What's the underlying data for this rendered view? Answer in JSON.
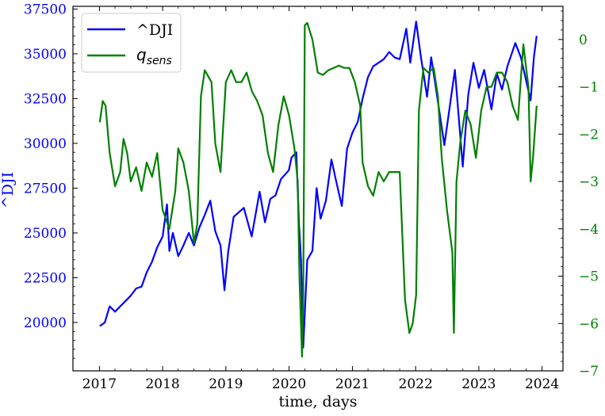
{
  "chart_data": {
    "type": "line",
    "xlabel": "time, days",
    "ylabel_left": "^DJI",
    "left_color": "#0000ff",
    "right_color": "#008000",
    "x_ticks": [
      "2017",
      "2018",
      "2019",
      "2020",
      "2021",
      "2022",
      "2023",
      "2024"
    ],
    "y_left_ticks": [
      "20000",
      "22500",
      "25000",
      "27500",
      "30000",
      "32500",
      "35000",
      "37500"
    ],
    "y_right_ticks": [
      "0",
      "−1",
      "−2",
      "−3",
      "−4",
      "−5",
      "−6",
      "−7"
    ],
    "xlim": [
      "2016-08-01",
      "2024-05-01"
    ],
    "ylim_left": [
      17300,
      37650
    ],
    "ylim_right": [
      -7.0,
      0.7
    ],
    "legend": {
      "placement": "top-left",
      "entries": [
        {
          "label": "^DJI",
          "color": "#0000ff"
        },
        {
          "label_main": "q",
          "label_sub": "sens",
          "color": "#008000"
        }
      ]
    },
    "series": [
      {
        "name": "^DJI",
        "axis": "left",
        "color": "#0000ff",
        "points": [
          [
            "2017-01-03",
            19800
          ],
          [
            "2017-02-01",
            20000
          ],
          [
            "2017-03-01",
            20900
          ],
          [
            "2017-04-01",
            20600
          ],
          [
            "2017-05-01",
            20900
          ],
          [
            "2017-06-01",
            21200
          ],
          [
            "2017-07-01",
            21500
          ],
          [
            "2017-08-01",
            21900
          ],
          [
            "2017-09-01",
            22000
          ],
          [
            "2017-10-01",
            22800
          ],
          [
            "2017-11-01",
            23400
          ],
          [
            "2017-12-01",
            24200
          ],
          [
            "2018-01-01",
            24800
          ],
          [
            "2018-01-26",
            26600
          ],
          [
            "2018-02-09",
            24000
          ],
          [
            "2018-03-01",
            25000
          ],
          [
            "2018-04-01",
            23700
          ],
          [
            "2018-05-01",
            24300
          ],
          [
            "2018-06-01",
            25000
          ],
          [
            "2018-07-01",
            24300
          ],
          [
            "2018-08-01",
            25300
          ],
          [
            "2018-09-01",
            26000
          ],
          [
            "2018-10-03",
            26800
          ],
          [
            "2018-11-01",
            25100
          ],
          [
            "2018-12-01",
            24300
          ],
          [
            "2018-12-24",
            21800
          ],
          [
            "2019-01-15",
            24000
          ],
          [
            "2019-02-15",
            25900
          ],
          [
            "2019-04-15",
            26400
          ],
          [
            "2019-05-30",
            24800
          ],
          [
            "2019-07-15",
            27300
          ],
          [
            "2019-08-15",
            25600
          ],
          [
            "2019-09-15",
            26900
          ],
          [
            "2019-10-15",
            27100
          ],
          [
            "2019-11-15",
            28000
          ],
          [
            "2019-12-31",
            28500
          ],
          [
            "2020-01-15",
            29200
          ],
          [
            "2020-02-12",
            29500
          ],
          [
            "2020-02-28",
            25400
          ],
          [
            "2020-03-10",
            23500
          ],
          [
            "2020-03-23",
            18600
          ],
          [
            "2020-04-15",
            23500
          ],
          [
            "2020-05-15",
            24000
          ],
          [
            "2020-06-08",
            27500
          ],
          [
            "2020-07-01",
            25800
          ],
          [
            "2020-08-01",
            26800
          ],
          [
            "2020-09-02",
            29100
          ],
          [
            "2020-10-01",
            27800
          ],
          [
            "2020-11-01",
            26500
          ],
          [
            "2020-12-01",
            29700
          ],
          [
            "2021-01-01",
            30600
          ],
          [
            "2021-02-01",
            31200
          ],
          [
            "2021-03-01",
            32500
          ],
          [
            "2021-04-01",
            33700
          ],
          [
            "2021-05-01",
            34300
          ],
          [
            "2021-06-01",
            34500
          ],
          [
            "2021-07-01",
            34700
          ],
          [
            "2021-08-01",
            35100
          ],
          [
            "2021-09-01",
            34800
          ],
          [
            "2021-10-01",
            34700
          ],
          [
            "2021-11-08",
            36400
          ],
          [
            "2021-12-01",
            34500
          ],
          [
            "2022-01-04",
            36800
          ],
          [
            "2022-02-01",
            34800
          ],
          [
            "2022-03-08",
            32600
          ],
          [
            "2022-04-01",
            34800
          ],
          [
            "2022-05-01",
            32900
          ],
          [
            "2022-06-16",
            29900
          ],
          [
            "2022-08-16",
            34100
          ],
          [
            "2022-09-30",
            28700
          ],
          [
            "2022-11-01",
            32700
          ],
          [
            "2022-12-01",
            34500
          ],
          [
            "2023-01-01",
            33100
          ],
          [
            "2023-02-01",
            34100
          ],
          [
            "2023-03-15",
            31900
          ],
          [
            "2023-04-15",
            33900
          ],
          [
            "2023-05-15",
            33000
          ],
          [
            "2023-06-15",
            34300
          ],
          [
            "2023-07-31",
            35600
          ],
          [
            "2023-09-01",
            34800
          ],
          [
            "2023-10-27",
            32400
          ],
          [
            "2023-11-15",
            34800
          ],
          [
            "2023-12-01",
            36000
          ]
        ]
      },
      {
        "name": "q_sens",
        "axis": "right",
        "color": "#008000",
        "points": [
          [
            "2017-01-03",
            -1.75
          ],
          [
            "2017-01-20",
            -1.3
          ],
          [
            "2017-02-05",
            -1.4
          ],
          [
            "2017-03-01",
            -2.4
          ],
          [
            "2017-04-01",
            -3.1
          ],
          [
            "2017-05-01",
            -2.8
          ],
          [
            "2017-05-20",
            -2.1
          ],
          [
            "2017-06-10",
            -2.4
          ],
          [
            "2017-07-01",
            -3.0
          ],
          [
            "2017-08-01",
            -2.7
          ],
          [
            "2017-09-01",
            -3.2
          ],
          [
            "2017-10-01",
            -2.6
          ],
          [
            "2017-11-01",
            -2.9
          ],
          [
            "2017-12-01",
            -2.4
          ],
          [
            "2018-01-01",
            -3.6
          ],
          [
            "2018-02-09",
            -4.0
          ],
          [
            "2018-03-15",
            -3.2
          ],
          [
            "2018-04-01",
            -2.3
          ],
          [
            "2018-05-01",
            -2.6
          ],
          [
            "2018-06-01",
            -3.2
          ],
          [
            "2018-07-01",
            -4.3
          ],
          [
            "2018-07-20",
            -3.9
          ],
          [
            "2018-08-10",
            -1.2
          ],
          [
            "2018-09-01",
            -0.65
          ],
          [
            "2018-10-10",
            -0.9
          ],
          [
            "2018-11-01",
            -2.2
          ],
          [
            "2018-12-01",
            -2.8
          ],
          [
            "2019-01-01",
            -0.9
          ],
          [
            "2019-02-01",
            -0.65
          ],
          [
            "2019-03-01",
            -0.9
          ],
          [
            "2019-04-01",
            -0.9
          ],
          [
            "2019-05-01",
            -0.7
          ],
          [
            "2019-06-01",
            -1.1
          ],
          [
            "2019-07-01",
            -1.3
          ],
          [
            "2019-08-01",
            -1.6
          ],
          [
            "2019-09-01",
            -2.4
          ],
          [
            "2019-10-01",
            -2.8
          ],
          [
            "2019-11-01",
            -1.8
          ],
          [
            "2019-12-01",
            -1.2
          ],
          [
            "2020-01-01",
            -1.6
          ],
          [
            "2020-02-01",
            -2.3
          ],
          [
            "2020-02-20",
            -3.0
          ],
          [
            "2020-03-01",
            -5.0
          ],
          [
            "2020-03-16",
            -6.7
          ],
          [
            "2020-03-23",
            -5.5
          ],
          [
            "2020-04-01",
            0.3
          ],
          [
            "2020-04-15",
            0.35
          ],
          [
            "2020-05-15",
            0.0
          ],
          [
            "2020-06-15",
            -0.7
          ],
          [
            "2020-07-15",
            -0.75
          ],
          [
            "2020-08-15",
            -0.65
          ],
          [
            "2020-09-15",
            -0.6
          ],
          [
            "2020-10-15",
            -0.55
          ],
          [
            "2020-11-15",
            -0.6
          ],
          [
            "2020-12-15",
            -0.6
          ],
          [
            "2021-01-15",
            -0.9
          ],
          [
            "2021-02-15",
            -1.4
          ],
          [
            "2021-03-01",
            -2.6
          ],
          [
            "2021-04-01",
            -3.1
          ],
          [
            "2021-05-01",
            -3.3
          ],
          [
            "2021-06-01",
            -2.8
          ],
          [
            "2021-07-01",
            -3.0
          ],
          [
            "2021-08-01",
            -2.8
          ],
          [
            "2021-09-01",
            -2.8
          ],
          [
            "2021-10-01",
            -2.8
          ],
          [
            "2021-11-01",
            -5.5
          ],
          [
            "2021-11-26",
            -6.2
          ],
          [
            "2021-12-15",
            -6.0
          ],
          [
            "2022-01-04",
            -5.4
          ],
          [
            "2022-01-20",
            -1.5
          ],
          [
            "2022-02-15",
            -0.6
          ],
          [
            "2022-03-15",
            -0.7
          ],
          [
            "2022-04-15",
            -0.6
          ],
          [
            "2022-05-10",
            -1.2
          ],
          [
            "2022-06-01",
            -2.5
          ],
          [
            "2022-07-01",
            -3.6
          ],
          [
            "2022-08-01",
            -4.5
          ],
          [
            "2022-08-10",
            -6.2
          ],
          [
            "2022-08-25",
            -3.0
          ],
          [
            "2022-09-15",
            -2.2
          ],
          [
            "2022-10-15",
            -1.5
          ],
          [
            "2022-11-15",
            -1.8
          ],
          [
            "2022-12-15",
            -2.5
          ],
          [
            "2023-01-15",
            -1.5
          ],
          [
            "2023-02-15",
            -1.0
          ],
          [
            "2023-03-15",
            -1.0
          ],
          [
            "2023-04-15",
            -0.7
          ],
          [
            "2023-05-15",
            -0.7
          ],
          [
            "2023-06-15",
            -0.9
          ],
          [
            "2023-07-15",
            -1.4
          ],
          [
            "2023-08-15",
            -1.7
          ],
          [
            "2023-09-15",
            -0.1
          ],
          [
            "2023-10-01",
            -0.6
          ],
          [
            "2023-10-15",
            -1.0
          ],
          [
            "2023-10-27",
            -3.0
          ],
          [
            "2023-11-10",
            -2.5
          ],
          [
            "2023-12-01",
            -1.4
          ]
        ]
      }
    ]
  }
}
